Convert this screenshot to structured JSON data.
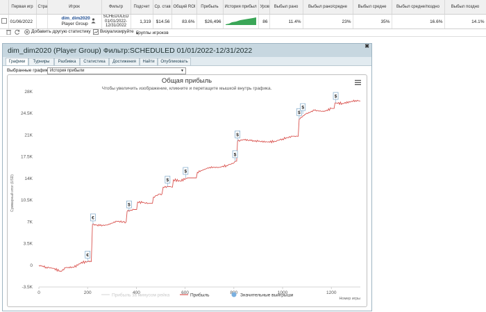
{
  "table": {
    "headers": [
      "",
      "Первая игр",
      "Стра",
      "Игрок",
      "Фильтр",
      "Подсчет",
      "Ср. став",
      "Общий ROI",
      "Прибыль",
      "История прибыл",
      "Уров",
      "Выбыл рано",
      "Выбыл рано/средне",
      "Выбыл средне",
      "Выбыл средне/поздно",
      "Выбыл поздно"
    ],
    "row": {
      "first_game": "01/06/2022",
      "site": "",
      "player_name": "dim_dim2020",
      "player_group": "Player Group",
      "filter_line1": "SCHEDULED",
      "filter_line2": "01/01/2022-",
      "filter_line3": "12/31/2022",
      "count": "1,319",
      "avg_stake": "$14.56",
      "roi": "83.6%",
      "profit": "$26,496",
      "level": "86",
      "early": "11.4%",
      "early_mid": "23%",
      "mid": "35%",
      "mid_late": "16.6%",
      "late": "14.1%"
    }
  },
  "toolbar": {
    "add_stats": "Добавить другую статистику",
    "visualize": "Визуализируйте",
    "player_groups": "Группы игроков"
  },
  "panel": {
    "title": "dim_dim2020 (Player Group) Фильтр:SCHEDULED 01/01/2022-12/31/2022",
    "tabs": [
      "Графики",
      "Турниры",
      "Разбивка",
      "Статистика",
      "Достижения",
      "Найти",
      "Опубликовать"
    ],
    "active_tab": 0,
    "graph_label": "Выбранные графики:",
    "graph_value": "История прибыли"
  },
  "chart_data": {
    "type": "line",
    "title": "Общая прибыль",
    "subtitle": "Чтобы увеличить изображение, кликните и перетащите мышкой внутрь графика.",
    "xlabel": "Номер игры",
    "ylabel": "Суммарный итог (USD)",
    "xlim": [
      0,
      1319
    ],
    "ylim": [
      -3500,
      28000
    ],
    "x_ticks": [
      0,
      200,
      400,
      600,
      800,
      1000,
      1200
    ],
    "y_ticks": [
      -3500,
      0,
      3500,
      7000,
      10500,
      14000,
      17500,
      21000,
      24500,
      28000
    ],
    "y_tick_labels": [
      "-3.5K",
      "0",
      "3.5K",
      "7K",
      "10.5K",
      "14K",
      "17.5K",
      "21K",
      "24.5K",
      "28K"
    ],
    "series": [
      {
        "name": "Прибыль за минусом рейка",
        "color": "#dcdcdc",
        "visible": false,
        "points": []
      },
      {
        "name": "Прибыль",
        "color": "#d9534f",
        "visible": true,
        "points": [
          [
            0,
            0
          ],
          [
            30,
            -300
          ],
          [
            60,
            -500
          ],
          [
            90,
            -1000
          ],
          [
            110,
            -400
          ],
          [
            140,
            -300
          ],
          [
            160,
            0
          ],
          [
            175,
            500
          ],
          [
            195,
            500
          ],
          [
            205,
            700
          ],
          [
            215,
            600
          ],
          [
            220,
            6600
          ],
          [
            250,
            6400
          ],
          [
            280,
            6500
          ],
          [
            300,
            6800
          ],
          [
            320,
            7100
          ],
          [
            345,
            7000
          ],
          [
            358,
            7000
          ],
          [
            362,
            8700
          ],
          [
            390,
            9000
          ],
          [
            405,
            10200
          ],
          [
            425,
            10100
          ],
          [
            450,
            10000
          ],
          [
            470,
            11000
          ],
          [
            495,
            11500
          ],
          [
            505,
            11500
          ],
          [
            510,
            12600
          ],
          [
            535,
            12700
          ],
          [
            548,
            12600
          ],
          [
            552,
            13800
          ],
          [
            580,
            13600
          ],
          [
            610,
            14100
          ],
          [
            650,
            15000
          ],
          [
            700,
            15800
          ],
          [
            740,
            15800
          ],
          [
            770,
            16100
          ],
          [
            800,
            16500
          ],
          [
            808,
            16800
          ],
          [
            815,
            20000
          ],
          [
            840,
            20300
          ],
          [
            870,
            20100
          ],
          [
            900,
            20000
          ],
          [
            940,
            19900
          ],
          [
            970,
            20000
          ],
          [
            1000,
            20400
          ],
          [
            1040,
            20800
          ],
          [
            1060,
            20800
          ],
          [
            1068,
            23600
          ],
          [
            1095,
            24400
          ],
          [
            1130,
            25000
          ],
          [
            1170,
            24800
          ],
          [
            1200,
            25300
          ],
          [
            1215,
            26200
          ],
          [
            1245,
            26100
          ],
          [
            1280,
            26400
          ],
          [
            1300,
            26600
          ],
          [
            1319,
            26500
          ]
        ]
      }
    ],
    "markers": [
      {
        "x": 200,
        "y": 600,
        "label": "€"
      },
      {
        "x": 222,
        "y": 6600,
        "label": "€"
      },
      {
        "x": 370,
        "y": 8700,
        "label": "$"
      },
      {
        "x": 528,
        "y": 12700,
        "label": "$"
      },
      {
        "x": 602,
        "y": 14100,
        "label": "$"
      },
      {
        "x": 805,
        "y": 16800,
        "label": "$"
      },
      {
        "x": 815,
        "y": 20000,
        "label": "$"
      },
      {
        "x": 1068,
        "y": 23600,
        "label": "$"
      },
      {
        "x": 1083,
        "y": 24400,
        "label": "$"
      },
      {
        "x": 1218,
        "y": 26200,
        "label": "$"
      }
    ],
    "legend": [
      {
        "name": "Прибыль за минусом рейка",
        "color": "#dcdcdc",
        "symbol": "line"
      },
      {
        "name": "Прибыль",
        "color": "#d9534f",
        "symbol": "line"
      },
      {
        "name": "Значительные выигрыши",
        "color": "#7ab0e0",
        "symbol": "dot"
      }
    ],
    "legend_position": "bottom",
    "grid": false
  }
}
